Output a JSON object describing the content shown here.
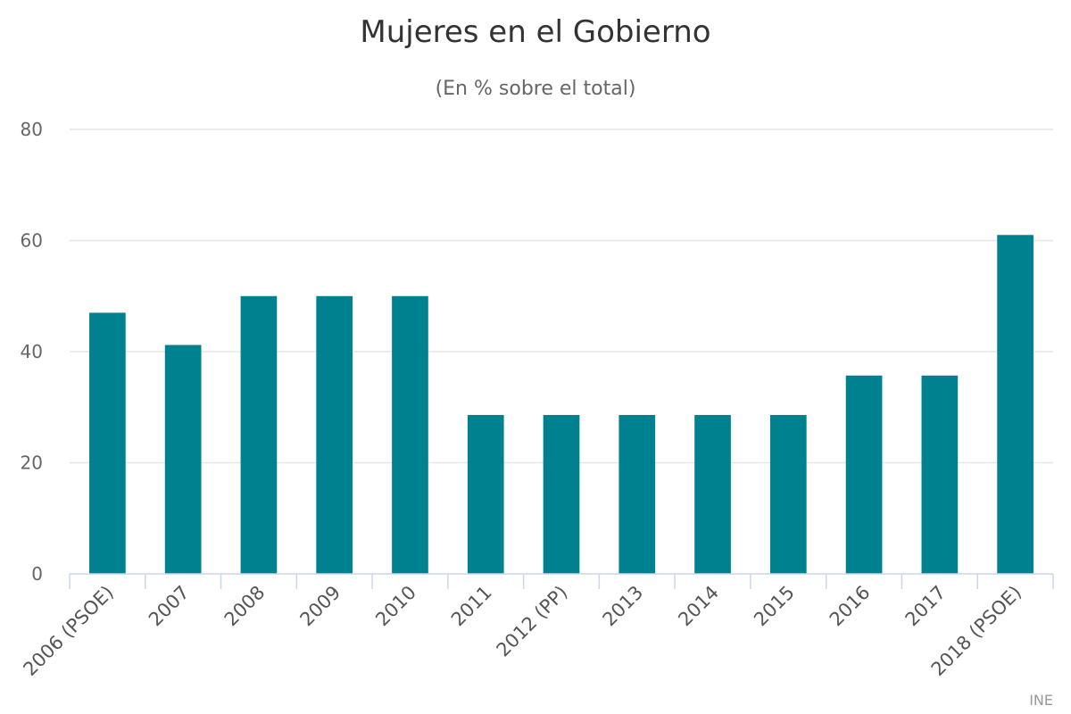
{
  "chart_data": {
    "type": "bar",
    "title": "Mujeres en el Gobierno",
    "subtitle": "(En % sobre el total)",
    "categories": [
      "2006 (PSOE)",
      "2007",
      "2008",
      "2009",
      "2010",
      "2011",
      "2012 (PP)",
      "2013",
      "2014",
      "2015",
      "2016",
      "2017",
      "2018 (PSOE)"
    ],
    "values": [
      47,
      41.2,
      50,
      50,
      50,
      28.6,
      28.6,
      28.6,
      28.6,
      28.6,
      35.7,
      35.7,
      61
    ],
    "ylim": [
      0,
      80
    ],
    "yticks": [
      0,
      20,
      40,
      60,
      80
    ],
    "grid": true,
    "bar_color": "#00818f",
    "credit": "INE"
  }
}
